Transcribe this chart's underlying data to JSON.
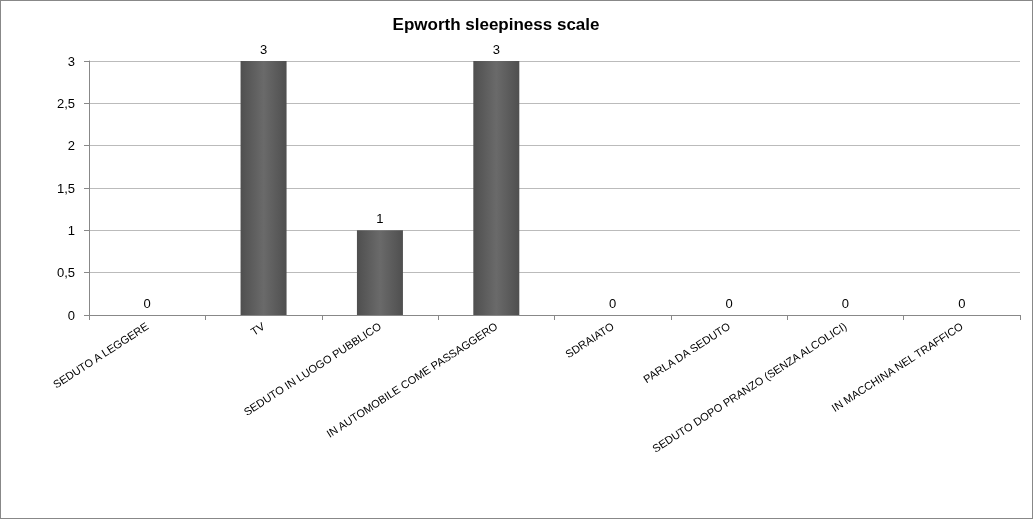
{
  "chart_data": {
    "type": "bar",
    "title": "Epworth sleepiness scale",
    "categories": [
      "SEDUTO A LEGGERE",
      "TV",
      "SEDUTO IN LUOGO PUBBLICO",
      "IN AUTOMOBILE COME PASSAGGERO",
      "SDRAIATO",
      "PARLA DA SEDUTO",
      "SEDUTO DOPO PRANZO (SENZA ALCOLICI)",
      "IN MACCHINA NEL TRAFFICO"
    ],
    "values": [
      0,
      3,
      1,
      3,
      0,
      0,
      0,
      0
    ],
    "color": "#4f4f4f",
    "ylim": [
      0,
      3
    ],
    "yticks": [
      0,
      {
        "value": 0.5,
        "label": "0,5"
      },
      1,
      {
        "value": 1.5,
        "label": "1,5"
      },
      2,
      {
        "value": 2.5,
        "label": "2,5"
      },
      3
    ],
    "grid": "y",
    "data_labels": true
  }
}
